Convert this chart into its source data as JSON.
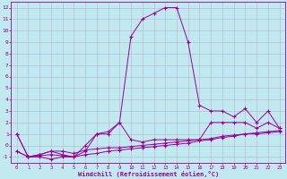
{
  "xlabel": "Windchill (Refroidissement éolien,°C)",
  "bg_color": "#c2e8f0",
  "line_color": "#990099",
  "grid_color": "#b0b8cc",
  "x_values": [
    0,
    1,
    2,
    3,
    4,
    5,
    6,
    7,
    8,
    9,
    10,
    11,
    12,
    13,
    14,
    15,
    16,
    17,
    18,
    19,
    20,
    21,
    22,
    23
  ],
  "line1": [
    1.0,
    -1.0,
    -1.0,
    -1.2,
    -1.0,
    -1.0,
    0.0,
    1.0,
    1.0,
    2.0,
    9.5,
    11.0,
    11.5,
    12.0,
    12.0,
    9.0,
    3.5,
    3.0,
    3.0,
    2.5,
    3.2,
    2.0,
    3.0,
    1.5
  ],
  "line2": [
    1.0,
    -1.0,
    -0.8,
    -0.5,
    -0.8,
    -1.0,
    -0.5,
    1.0,
    1.2,
    2.0,
    0.5,
    0.3,
    0.5,
    0.5,
    0.5,
    0.5,
    0.5,
    2.0,
    2.0,
    2.0,
    2.0,
    1.5,
    2.0,
    1.5
  ],
  "line3": [
    -0.5,
    -1.0,
    -0.8,
    -0.5,
    -0.5,
    -0.7,
    -0.4,
    -0.3,
    -0.2,
    -0.2,
    -0.1,
    0.0,
    0.1,
    0.2,
    0.3,
    0.4,
    0.5,
    0.6,
    0.8,
    0.9,
    1.0,
    1.1,
    1.2,
    1.3
  ],
  "line4": [
    -0.5,
    -1.0,
    -0.9,
    -0.8,
    -0.9,
    -1.0,
    -0.8,
    -0.7,
    -0.5,
    -0.4,
    -0.3,
    -0.2,
    -0.1,
    0.0,
    0.1,
    0.2,
    0.4,
    0.5,
    0.7,
    0.8,
    1.0,
    1.0,
    1.1,
    1.2
  ],
  "ylim": [
    -1.5,
    12.5
  ],
  "xlim": [
    -0.5,
    23.5
  ],
  "yticks": [
    -1,
    0,
    1,
    2,
    3,
    4,
    5,
    6,
    7,
    8,
    9,
    10,
    11,
    12
  ],
  "xticks": [
    0,
    1,
    2,
    3,
    4,
    5,
    6,
    7,
    8,
    9,
    10,
    11,
    12,
    13,
    14,
    15,
    16,
    17,
    18,
    19,
    20,
    21,
    22,
    23
  ]
}
